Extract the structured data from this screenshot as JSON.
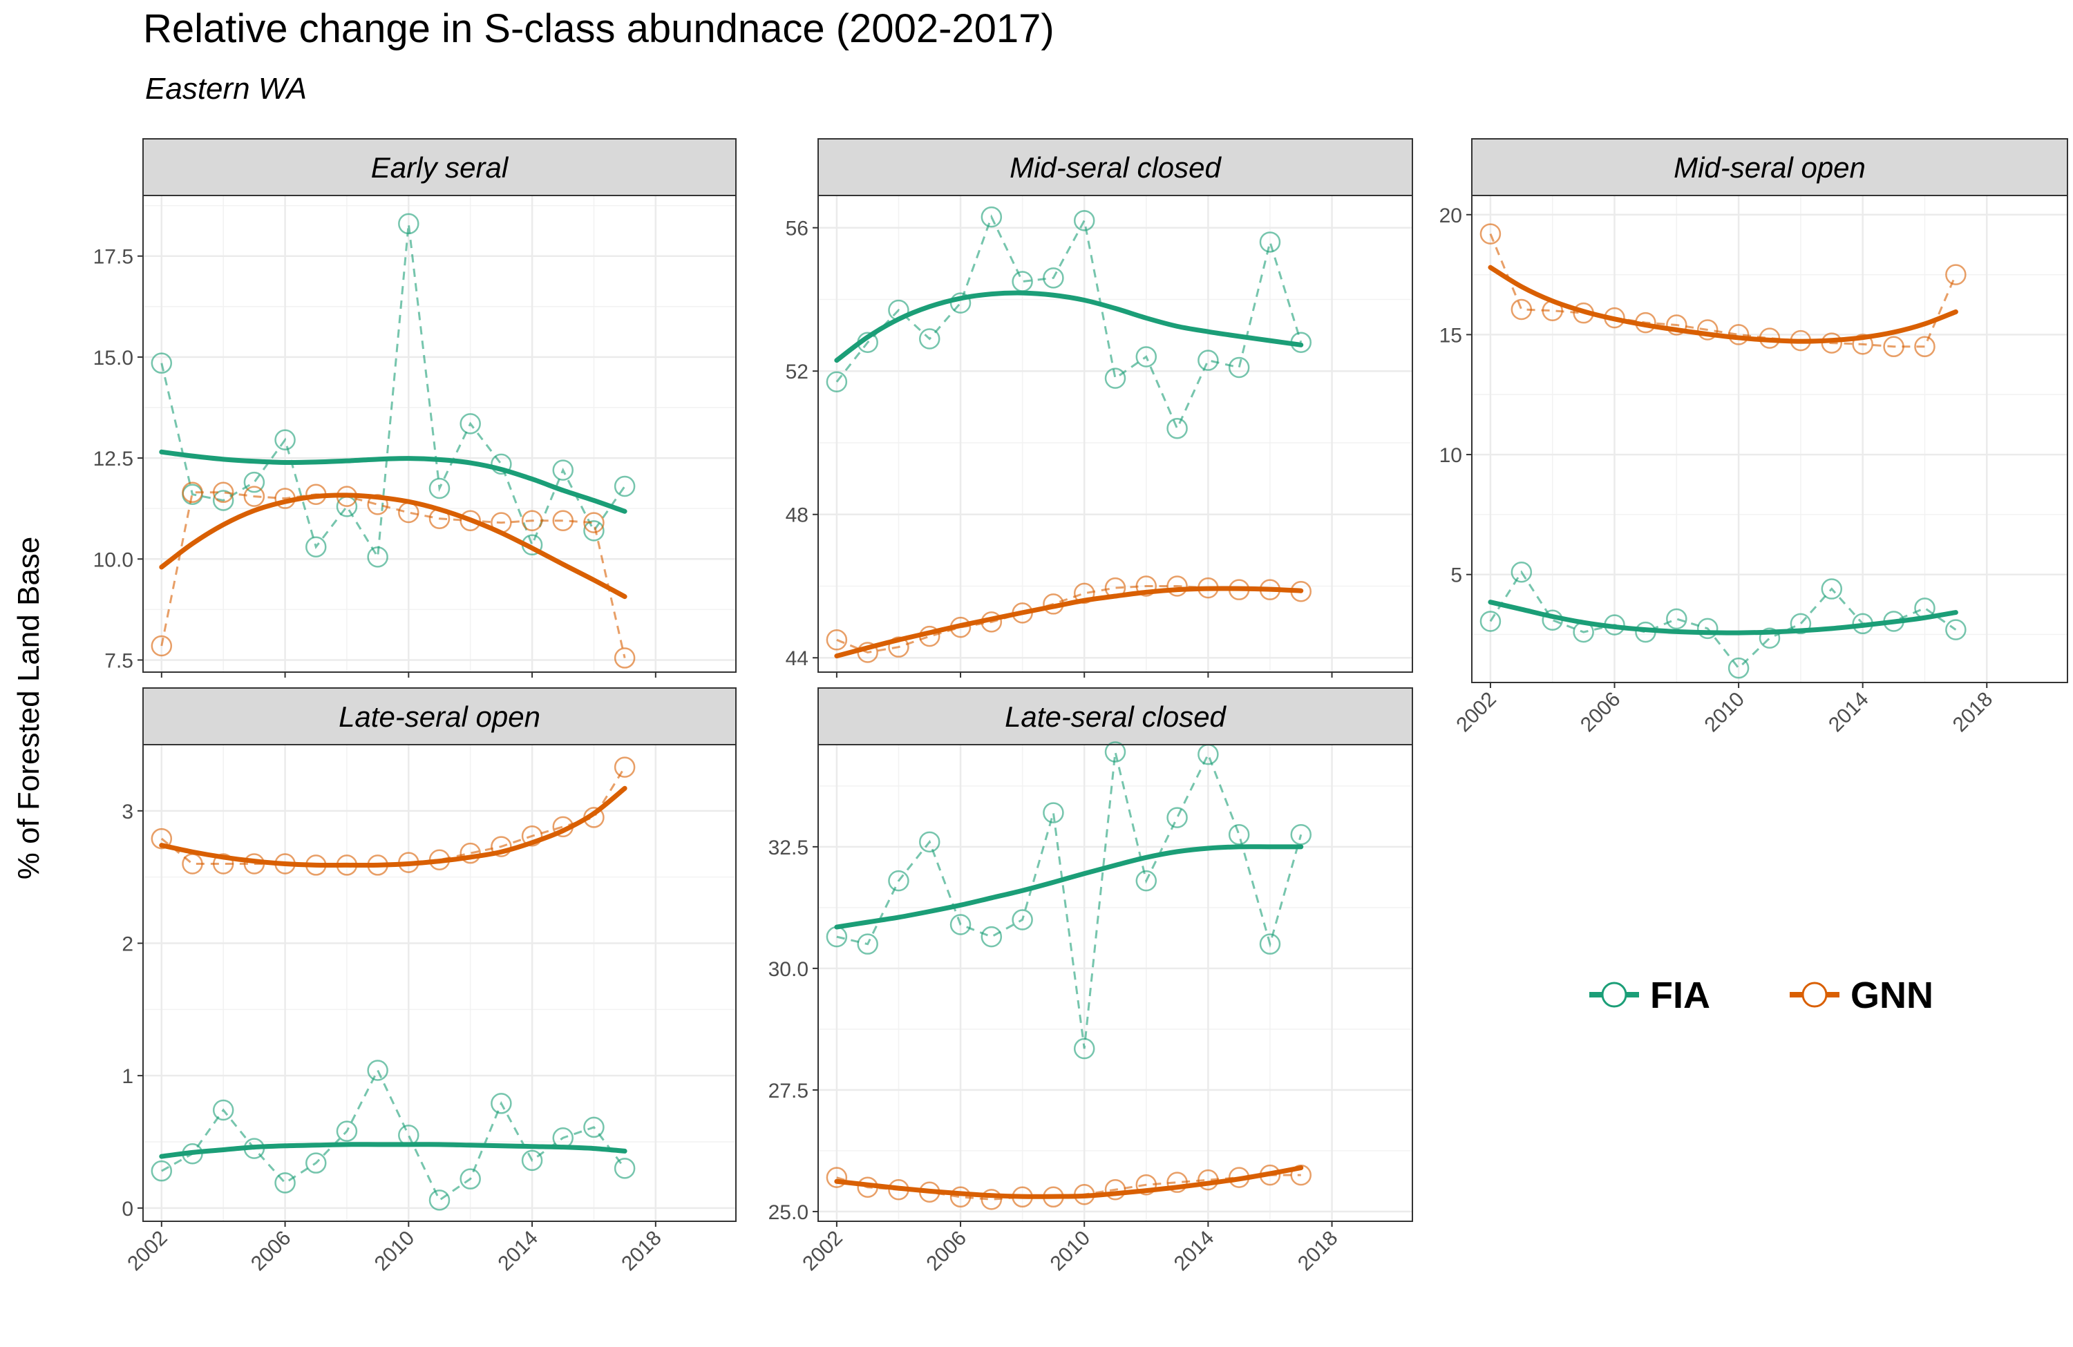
{
  "title": "Relative change in S-class abundnace (2002-2017)",
  "subtitle": "Eastern WA",
  "colors": {
    "FIA": "#1b9e77",
    "GNN": "#d95f02",
    "strip": "#d9d9d9",
    "grid": "#ebebeb"
  },
  "chart_data": {
    "type": "line",
    "title": "Relative change in S-class abundnace (2002-2017)",
    "subtitle": "Eastern WA",
    "ylabel": "% of Forested Land Base",
    "xlabel": "",
    "legend": {
      "position": "bottom-right",
      "entries": [
        "FIA",
        "GNN"
      ]
    },
    "grid": true,
    "x": [
      2002,
      2003,
      2004,
      2005,
      2006,
      2007,
      2008,
      2009,
      2010,
      2011,
      2012,
      2013,
      2014,
      2015,
      2016,
      2017
    ],
    "facets": [
      {
        "name": "Early seral",
        "xlim": [
          2001.4,
          2020.6
        ],
        "ylim": [
          7.2,
          19.0
        ],
        "xticks": [
          2002,
          2006,
          2010,
          2014,
          2018
        ],
        "yticks": [
          7.5,
          10.0,
          12.5,
          15.0,
          17.5
        ],
        "ytick_labels": [
          "7.5",
          "10.0",
          "12.5",
          "15.0",
          "17.5"
        ],
        "series": [
          {
            "name": "FIA",
            "values": [
              14.85,
              11.6,
              11.45,
              11.9,
              12.95,
              10.3,
              11.3,
              10.05,
              18.3,
              11.75,
              13.35,
              12.35,
              10.35,
              12.2,
              10.7,
              11.8
            ],
            "trend": [
              12.65,
              12.55,
              12.47,
              12.42,
              12.39,
              12.4,
              12.43,
              12.47,
              12.49,
              12.46,
              12.38,
              12.22,
              11.98,
              11.7,
              11.45,
              11.18
            ]
          },
          {
            "name": "GNN",
            "values": [
              7.85,
              11.65,
              11.65,
              11.55,
              11.5,
              11.6,
              11.55,
              11.35,
              11.15,
              11.0,
              10.95,
              10.9,
              10.95,
              10.95,
              10.9,
              7.55
            ],
            "trend": [
              9.8,
              10.38,
              10.85,
              11.2,
              11.42,
              11.55,
              11.58,
              11.53,
              11.42,
              11.23,
              10.97,
              10.65,
              10.27,
              9.87,
              9.48,
              9.07
            ]
          }
        ]
      },
      {
        "name": "Mid-seral closed",
        "xlim": [
          2001.4,
          2020.6
        ],
        "ylim": [
          43.6,
          56.9
        ],
        "xticks": [
          2002,
          2006,
          2010,
          2014,
          2018
        ],
        "yticks": [
          44,
          48,
          52,
          56
        ],
        "ytick_labels": [
          "44",
          "48",
          "52",
          "56"
        ],
        "series": [
          {
            "name": "FIA",
            "values": [
              51.7,
              52.8,
              53.7,
              52.9,
              53.9,
              56.3,
              54.5,
              54.6,
              56.2,
              51.8,
              52.4,
              50.4,
              52.3,
              52.1,
              55.6,
              52.8
            ],
            "trend": [
              52.3,
              52.95,
              53.45,
              53.8,
              54.03,
              54.15,
              54.18,
              54.12,
              53.98,
              53.75,
              53.48,
              53.25,
              53.1,
              52.97,
              52.85,
              52.73
            ]
          },
          {
            "name": "GNN",
            "values": [
              44.5,
              44.15,
              44.3,
              44.6,
              44.85,
              45.0,
              45.25,
              45.5,
              45.8,
              45.95,
              46.0,
              46.0,
              45.95,
              45.9,
              45.9,
              45.85
            ],
            "trend": [
              44.05,
              44.28,
              44.5,
              44.7,
              44.9,
              45.08,
              45.26,
              45.43,
              45.6,
              45.72,
              45.83,
              45.9,
              45.93,
              45.93,
              45.91,
              45.87
            ]
          }
        ]
      },
      {
        "name": "Mid-seral open",
        "xlim": [
          2001.4,
          2020.6
        ],
        "ylim": [
          0.5,
          20.8
        ],
        "xticks": [
          2002,
          2006,
          2010,
          2014,
          2018
        ],
        "yticks": [
          5,
          10,
          15,
          20
        ],
        "ytick_labels": [
          "5",
          "10",
          "15",
          "20"
        ],
        "series": [
          {
            "name": "FIA",
            "values": [
              3.05,
              5.1,
              3.1,
              2.6,
              2.9,
              2.6,
              3.15,
              2.75,
              1.1,
              2.35,
              2.95,
              4.4,
              2.95,
              3.05,
              3.6,
              2.7
            ],
            "trend": [
              3.85,
              3.55,
              3.25,
              3.0,
              2.82,
              2.7,
              2.62,
              2.58,
              2.57,
              2.6,
              2.66,
              2.75,
              2.88,
              3.03,
              3.2,
              3.42
            ]
          },
          {
            "name": "GNN",
            "values": [
              19.2,
              16.05,
              16.0,
              15.9,
              15.7,
              15.5,
              15.4,
              15.2,
              15.0,
              14.85,
              14.75,
              14.65,
              14.6,
              14.5,
              14.5,
              17.5
            ],
            "trend": [
              17.8,
              17.0,
              16.4,
              15.97,
              15.65,
              15.4,
              15.2,
              15.02,
              14.87,
              14.77,
              14.72,
              14.76,
              14.88,
              15.1,
              15.45,
              15.95
            ]
          }
        ]
      },
      {
        "name": "Late-seral open",
        "xlim": [
          2001.4,
          2020.6
        ],
        "ylim": [
          -0.1,
          3.5
        ],
        "xticks": [
          2002,
          2006,
          2010,
          2014,
          2018
        ],
        "yticks": [
          0,
          1,
          2,
          3
        ],
        "ytick_labels": [
          "0",
          "1",
          "2",
          "3"
        ],
        "series": [
          {
            "name": "FIA",
            "values": [
              0.28,
              0.41,
              0.74,
              0.45,
              0.19,
              0.34,
              0.58,
              1.04,
              0.55,
              0.06,
              0.22,
              0.79,
              0.36,
              0.53,
              0.61,
              0.3
            ],
            "trend": [
              0.39,
              0.42,
              0.44,
              0.46,
              0.47,
              0.475,
              0.48,
              0.48,
              0.48,
              0.48,
              0.475,
              0.47,
              0.465,
              0.46,
              0.45,
              0.43
            ]
          },
          {
            "name": "GNN",
            "values": [
              2.79,
              2.6,
              2.6,
              2.6,
              2.6,
              2.59,
              2.59,
              2.59,
              2.61,
              2.63,
              2.68,
              2.73,
              2.81,
              2.88,
              2.95,
              3.33
            ],
            "trend": [
              2.74,
              2.69,
              2.65,
              2.62,
              2.6,
              2.59,
              2.59,
              2.59,
              2.6,
              2.62,
              2.65,
              2.69,
              2.76,
              2.85,
              2.98,
              3.17
            ]
          }
        ]
      },
      {
        "name": "Late-seral closed",
        "xlim": [
          2001.4,
          2020.6
        ],
        "ylim": [
          24.8,
          34.6
        ],
        "xticks": [
          2002,
          2006,
          2010,
          2014,
          2018
        ],
        "yticks": [
          25.0,
          27.5,
          30.0,
          32.5
        ],
        "ytick_labels": [
          "25.0",
          "27.5",
          "30.0",
          "32.5"
        ],
        "series": [
          {
            "name": "FIA",
            "values": [
              30.65,
              30.5,
              31.8,
              32.6,
              30.9,
              30.65,
              31.0,
              33.2,
              28.35,
              34.45,
              31.8,
              33.1,
              34.4,
              32.75,
              30.5,
              32.75
            ],
            "trend": [
              30.85,
              30.95,
              31.05,
              31.17,
              31.3,
              31.45,
              31.6,
              31.77,
              31.95,
              32.12,
              32.28,
              32.4,
              32.47,
              32.5,
              32.5,
              32.5
            ]
          },
          {
            "name": "GNN",
            "values": [
              25.7,
              25.5,
              25.45,
              25.4,
              25.3,
              25.25,
              25.3,
              25.3,
              25.35,
              25.45,
              25.55,
              25.6,
              25.65,
              25.7,
              25.75,
              25.75
            ],
            "trend": [
              25.62,
              25.55,
              25.48,
              25.42,
              25.37,
              25.33,
              25.31,
              25.31,
              25.32,
              25.37,
              25.43,
              25.5,
              25.58,
              25.67,
              25.78,
              25.9
            ]
          }
        ]
      }
    ]
  }
}
